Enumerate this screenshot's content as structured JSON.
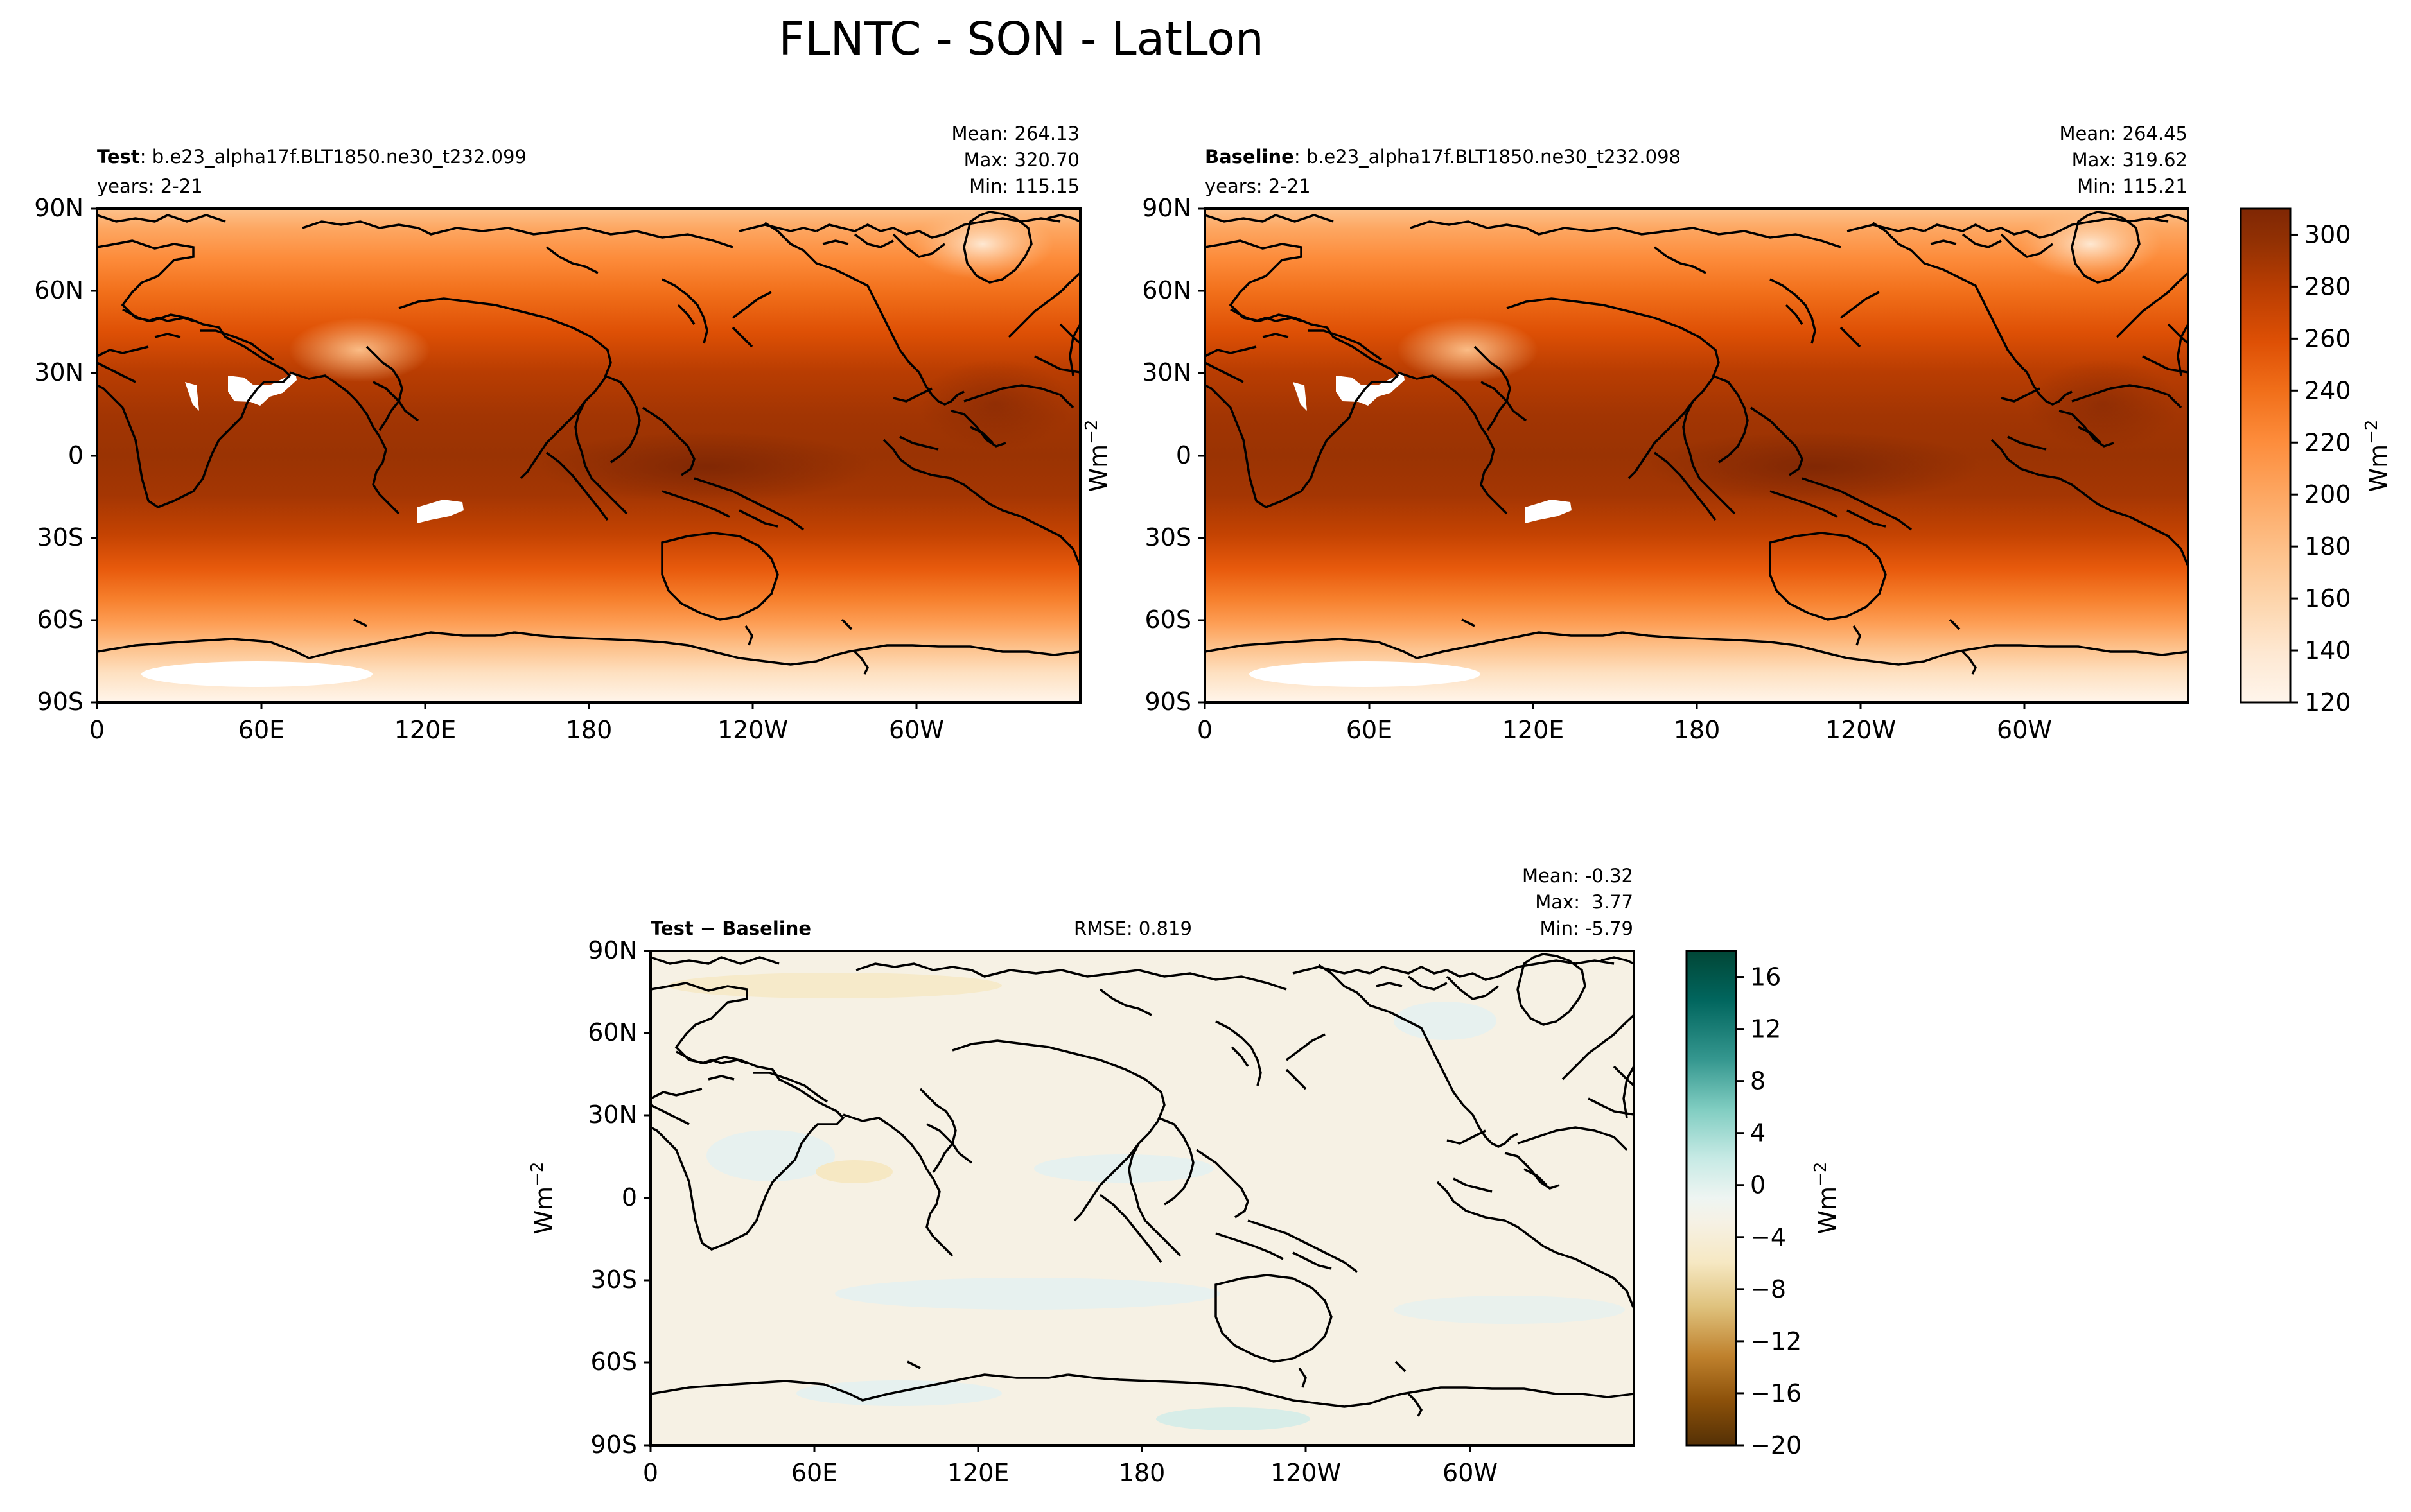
{
  "figure": {
    "title": "FLNTC - SON - LatLon"
  },
  "chart_data": [
    {
      "type": "heatmap",
      "panel": "test",
      "label_bold": "Test",
      "label_rest": ": b.e23_alpha17f.BLT1850.ne30_t232.099",
      "years": "years: 2-21",
      "stats": [
        "Mean: 264.13",
        "Max: 320.70",
        "Min: 115.15"
      ],
      "mean": 264.13,
      "max": 320.7,
      "min": 115.15,
      "xticks": [
        "0",
        "60E",
        "120E",
        "180",
        "120W",
        "60W"
      ],
      "yticks": [
        "90N",
        "60N",
        "30N",
        "0",
        "30S",
        "60S",
        "90S"
      ],
      "xlim": [
        0,
        360
      ],
      "ylim": [
        -90,
        90
      ],
      "zonal_mean_profile": [
        {
          "lat": -90,
          "value": 135
        },
        {
          "lat": -75,
          "value": 165
        },
        {
          "lat": -60,
          "value": 215
        },
        {
          "lat": -45,
          "value": 245
        },
        {
          "lat": -30,
          "value": 272
        },
        {
          "lat": -15,
          "value": 285
        },
        {
          "lat": 0,
          "value": 285
        },
        {
          "lat": 15,
          "value": 283
        },
        {
          "lat": 30,
          "value": 268
        },
        {
          "lat": 45,
          "value": 245
        },
        {
          "lat": 60,
          "value": 225
        },
        {
          "lat": 75,
          "value": 210
        },
        {
          "lat": 90,
          "value": 200
        }
      ]
    },
    {
      "type": "heatmap",
      "panel": "baseline",
      "label_bold": "Baseline",
      "label_rest": ": b.e23_alpha17f.BLT1850.ne30_t232.098",
      "years": "years: 2-21",
      "stats": [
        "Mean: 264.45",
        "Max: 319.62",
        "Min: 115.21"
      ],
      "mean": 264.45,
      "max": 319.62,
      "min": 115.21,
      "xticks": [
        "0",
        "60E",
        "120E",
        "180",
        "120W",
        "60W"
      ],
      "yticks": [
        "90N",
        "60N",
        "30N",
        "0",
        "30S",
        "60S",
        "90S"
      ],
      "xlim": [
        0,
        360
      ],
      "ylim": [
        -90,
        90
      ],
      "colorbar": {
        "label": "Wm",
        "label_sup": "−2",
        "range": [
          120,
          310
        ],
        "ticks": [
          "120",
          "140",
          "160",
          "180",
          "200",
          "220",
          "240",
          "260",
          "280",
          "300"
        ],
        "colors": [
          "#fff5eb",
          "#fee8d2",
          "#fdd6ae",
          "#fdc28c",
          "#fda762",
          "#fd8c3b",
          "#f16f1a",
          "#de5005",
          "#b93d02",
          "#933103",
          "#7f2704"
        ]
      }
    },
    {
      "type": "heatmap",
      "panel": "difference",
      "label_a": "Test",
      "label_op": " − ",
      "label_b": "Baseline",
      "rmse": "RMSE: 0.819",
      "stats": [
        "Mean: -0.32",
        "Max:  3.77",
        "Min: -5.79"
      ],
      "mean": -0.32,
      "max": 3.77,
      "min": -5.79,
      "xticks": [
        "0",
        "60E",
        "120E",
        "180",
        "120W",
        "60W"
      ],
      "yticks": [
        "90N",
        "60N",
        "30N",
        "0",
        "30S",
        "60S",
        "90S"
      ],
      "xlim": [
        0,
        360
      ],
      "ylim": [
        -90,
        90
      ],
      "colorbar": {
        "label": "Wm",
        "label_sup": "−2",
        "range": [
          -20,
          18
        ],
        "ticks": [
          "16",
          "12",
          "8",
          "4",
          "0",
          "−4",
          "−8",
          "−12",
          "−16",
          "−20"
        ],
        "colors": [
          "#01665e",
          "#35978f",
          "#80cdc1",
          "#c7eae5",
          "#f5f5f5",
          "#f6e8c3",
          "#dfc27d",
          "#bf812d",
          "#8c510a",
          "#543005"
        ]
      }
    }
  ],
  "colors": {
    "land_mask": "#ffffff",
    "difference_background": "#f6f1e4",
    "difference_positive_patch": "#e6f1ef"
  }
}
